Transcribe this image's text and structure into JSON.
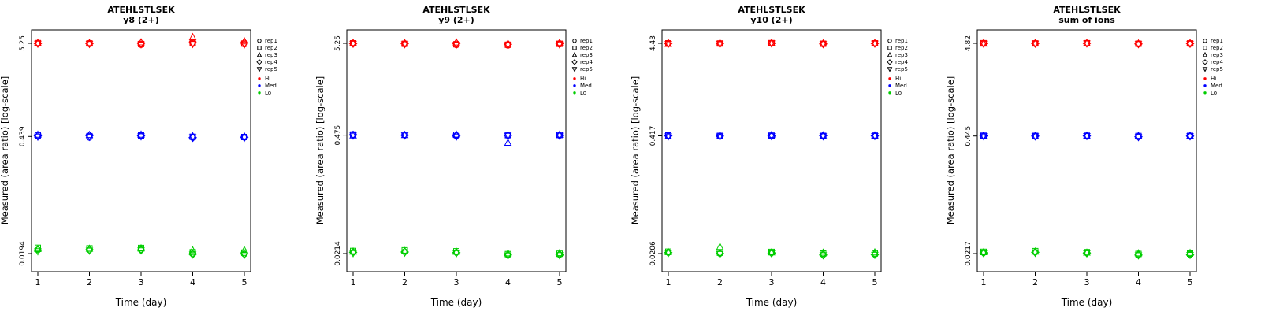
{
  "legend": {
    "reps": [
      {
        "label": "rep1",
        "marker": "circle"
      },
      {
        "label": "rep2",
        "marker": "square"
      },
      {
        "label": "rep3",
        "marker": "triangle-up"
      },
      {
        "label": "rep4",
        "marker": "diamond"
      },
      {
        "label": "rep5",
        "marker": "triangle-down"
      }
    ],
    "levels": [
      {
        "label": "Hi",
        "color": "#FF0000"
      },
      {
        "label": "Med",
        "color": "#0000FF"
      },
      {
        "label": "Lo",
        "color": "#00CD00"
      }
    ]
  },
  "chart_data": [
    {
      "type": "scatter",
      "title": "ATEHLSTLSEK",
      "subtitle": "y8 (2+)",
      "xlabel": "Time (day)",
      "ylabel": "Measured (area ratio) [log-scale]",
      "yscale": "log",
      "xticks": [
        1,
        2,
        3,
        4,
        5
      ],
      "yticks": [
        5.25,
        0.439,
        0.0194
      ],
      "series": [
        {
          "name": "Hi",
          "color": "#FF0000",
          "values": [
            [
              5.22,
              5.27,
              5.32,
              5.24,
              5.18
            ],
            [
              5.18,
              5.24,
              5.3,
              5.21,
              5.15
            ],
            [
              5.05,
              5.15,
              5.4,
              5.25,
              5.1
            ],
            [
              5.2,
              5.28,
              6.2,
              5.35,
              5.15
            ],
            [
              5.12,
              5.22,
              5.55,
              5.32,
              5.08
            ]
          ]
        },
        {
          "name": "Med",
          "color": "#0000FF",
          "values": [
            [
              0.44,
              0.452,
              0.461,
              0.446,
              0.436
            ],
            [
              0.426,
              0.443,
              0.458,
              0.45,
              0.433
            ],
            [
              0.442,
              0.451,
              0.462,
              0.447,
              0.44
            ],
            [
              0.43,
              0.435,
              0.443,
              0.425,
              0.429
            ],
            [
              0.429,
              0.433,
              0.441,
              0.431,
              0.423
            ]
          ]
        },
        {
          "name": "Lo",
          "color": "#00CD00",
          "values": [
            [
              0.0215,
              0.0226,
              0.0219,
              0.0212,
              0.0206
            ],
            [
              0.0213,
              0.0223,
              0.0221,
              0.0215,
              0.0209
            ],
            [
              0.0215,
              0.0225,
              0.0223,
              0.0213,
              0.0211
            ],
            [
              0.0193,
              0.0201,
              0.0212,
              0.0191,
              0.0189
            ],
            [
              0.0191,
              0.0199,
              0.0213,
              0.0193,
              0.0187
            ]
          ]
        }
      ]
    },
    {
      "type": "scatter",
      "title": "ATEHLSTLSEK",
      "subtitle": "y9 (2+)",
      "xlabel": "Time (day)",
      "ylabel": "Measured (area ratio) [log-scale]",
      "yscale": "log",
      "xticks": [
        1,
        2,
        3,
        4,
        5
      ],
      "yticks": [
        5.25,
        0.475,
        0.0214
      ],
      "series": [
        {
          "name": "Hi",
          "color": "#FF0000",
          "values": [
            [
              5.21,
              5.25,
              5.31,
              5.23,
              5.17
            ],
            [
              5.13,
              5.19,
              5.27,
              5.21,
              5.11
            ],
            [
              5.02,
              5.12,
              5.38,
              5.24,
              5.06
            ],
            [
              4.96,
              5.06,
              5.22,
              5.12,
              4.99
            ],
            [
              5.11,
              5.19,
              5.32,
              5.23,
              5.09
            ]
          ]
        },
        {
          "name": "Med",
          "color": "#0000FF",
          "values": [
            [
              0.476,
              0.483,
              0.471,
              0.479,
              0.469
            ],
            [
              0.473,
              0.481,
              0.477,
              0.475,
              0.471
            ],
            [
              0.471,
              0.479,
              0.483,
              0.463,
              0.456
            ],
            [
              0.469,
              0.475,
              0.39,
              0.471,
              0.466
            ],
            [
              0.471,
              0.477,
              0.481,
              0.473,
              0.467
            ]
          ]
        },
        {
          "name": "Lo",
          "color": "#00CD00",
          "values": [
            [
              0.0223,
              0.0229,
              0.0226,
              0.0221,
              0.0216
            ],
            [
              0.0226,
              0.0233,
              0.0229,
              0.0223,
              0.0219
            ],
            [
              0.0221,
              0.0227,
              0.0225,
              0.0219,
              0.0215
            ],
            [
              0.0206,
              0.0211,
              0.0216,
              0.0206,
              0.0203
            ],
            [
              0.0209,
              0.0213,
              0.0217,
              0.0207,
              0.0205
            ]
          ]
        }
      ]
    },
    {
      "type": "scatter",
      "title": "ATEHLSTLSEK",
      "subtitle": "y10 (2+)",
      "xlabel": "Time (day)",
      "ylabel": "Measured (area ratio) [log-scale]",
      "yscale": "log",
      "xticks": [
        1,
        2,
        3,
        4,
        5
      ],
      "yticks": [
        4.43,
        0.417,
        0.0206
      ],
      "series": [
        {
          "name": "Hi",
          "color": "#FF0000",
          "values": [
            [
              4.41,
              4.43,
              4.37,
              4.42,
              4.36
            ],
            [
              4.39,
              4.41,
              4.43,
              4.4,
              4.37
            ],
            [
              4.43,
              4.45,
              4.47,
              4.44,
              4.41
            ],
            [
              4.36,
              4.39,
              4.43,
              4.37,
              4.33
            ],
            [
              4.41,
              4.43,
              4.45,
              4.42,
              4.39
            ]
          ]
        },
        {
          "name": "Med",
          "color": "#0000FF",
          "values": [
            [
              0.416,
              0.421,
              0.413,
              0.418,
              0.411
            ],
            [
              0.413,
              0.417,
              0.411,
              0.415,
              0.409
            ],
            [
              0.416,
              0.419,
              0.427,
              0.415,
              0.413
            ],
            [
              0.413,
              0.417,
              0.423,
              0.419,
              0.411
            ],
            [
              0.416,
              0.419,
              0.422,
              0.417,
              0.414
            ]
          ]
        },
        {
          "name": "Lo",
          "color": "#00CD00",
          "values": [
            [
              0.0213,
              0.0216,
              0.0214,
              0.0211,
              0.0209
            ],
            [
              0.0206,
              0.0211,
              0.0245,
              0.0207,
              0.0203
            ],
            [
              0.0211,
              0.0215,
              0.0213,
              0.0209,
              0.0207
            ],
            [
              0.0201,
              0.0206,
              0.0211,
              0.0199,
              0.0197
            ],
            [
              0.0203,
              0.0207,
              0.0213,
              0.0201,
              0.0199
            ]
          ]
        }
      ]
    },
    {
      "type": "scatter",
      "title": "ATEHLSTLSEK",
      "subtitle": "sum of ions",
      "xlabel": "Time (day)",
      "ylabel": "Measured (area ratio) [log-scale]",
      "yscale": "log",
      "xticks": [
        1,
        2,
        3,
        4,
        5
      ],
      "yticks": [
        4.82,
        0.445,
        0.0217
      ],
      "series": [
        {
          "name": "Hi",
          "color": "#FF0000",
          "values": [
            [
              4.81,
              4.83,
              4.79,
              4.82,
              4.76
            ],
            [
              4.79,
              4.81,
              4.83,
              4.8,
              4.77
            ],
            [
              4.81,
              4.83,
              4.85,
              4.82,
              4.8
            ],
            [
              4.73,
              4.77,
              4.81,
              4.75,
              4.71
            ],
            [
              4.77,
              4.81,
              4.85,
              4.79,
              4.75
            ]
          ]
        },
        {
          "name": "Med",
          "color": "#0000FF",
          "values": [
            [
              0.446,
              0.449,
              0.444,
              0.447,
              0.442
            ],
            [
              0.443,
              0.447,
              0.445,
              0.444,
              0.441
            ],
            [
              0.446,
              0.449,
              0.451,
              0.447,
              0.444
            ],
            [
              0.441,
              0.445,
              0.449,
              0.437,
              0.433
            ],
            [
              0.444,
              0.447,
              0.45,
              0.445,
              0.442
            ]
          ]
        },
        {
          "name": "Lo",
          "color": "#00CD00",
          "values": [
            [
              0.0223,
              0.0227,
              0.0225,
              0.0221,
              0.0219
            ],
            [
              0.0226,
              0.0231,
              0.0229,
              0.0224,
              0.0221
            ],
            [
              0.0221,
              0.0225,
              0.0223,
              0.022,
              0.0218
            ],
            [
              0.0211,
              0.0215,
              0.0219,
              0.0209,
              0.0207
            ],
            [
              0.0213,
              0.0217,
              0.0221,
              0.0211,
              0.0209
            ]
          ]
        }
      ]
    }
  ]
}
